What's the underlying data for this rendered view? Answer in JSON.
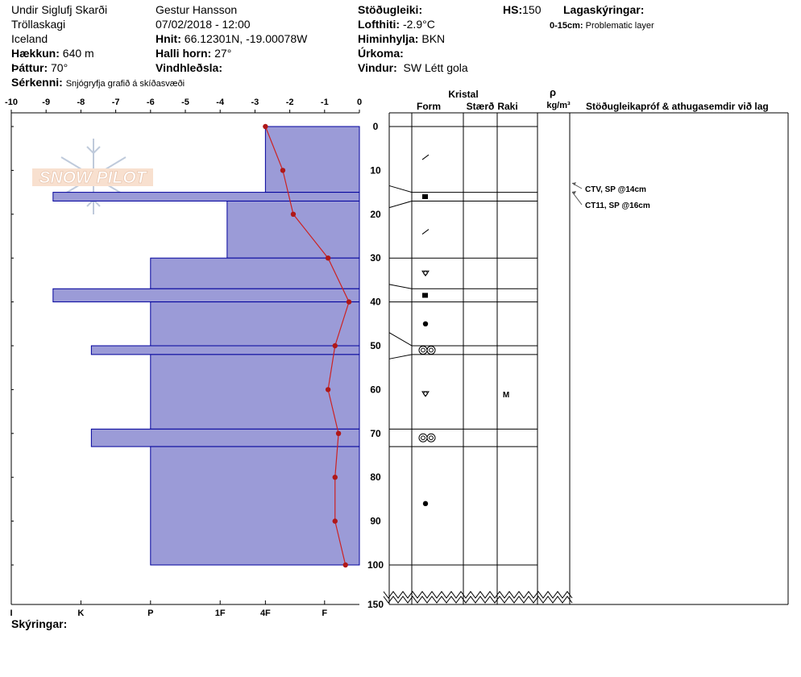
{
  "header": {
    "location": "Undir Siglufj Skarði",
    "region": "Tröllaskagi",
    "country": "Iceland",
    "elevation_label": "Hækkun:",
    "elevation_value": "640 m",
    "aspect_label": "Þáttur:",
    "aspect_value": "70°",
    "features_label": "Sérkenni:",
    "features_value": "Snjógryfja grafið á skíðasvæði",
    "observer": "Gestur Hansson",
    "datetime": "07/02/2018 - 12:00",
    "coords_label": "Hnit:",
    "coords_value": "66.12301N, -19.00078W",
    "slope_label": "Halli horn:",
    "slope_value": "27°",
    "wind_load_label": "Vindhleðsla:",
    "stability_label": "Stöðugleiki:",
    "air_temp_label": "Lofthiti:",
    "air_temp_value": "-2.9°C",
    "sky_label": "Himinhylja:",
    "sky_value": "BKN",
    "precip_label": "Úrkoma:",
    "wind_label": "Vindur:",
    "wind_value": "SW Létt gola",
    "hs_label": "HS:",
    "hs_value": "150",
    "layer_notes_label": "Lagaskýringar:",
    "layer_note_range": "0-15cm:",
    "layer_note_text": "Problematic layer"
  },
  "footer": {
    "notes_label": "Skýringar:"
  },
  "watermark": {
    "text": "SNOW PILOT"
  },
  "colors": {
    "hardness_fill": "#9b9bd7",
    "hardness_stroke": "#00009c",
    "temp_line": "#cc2222",
    "temp_point": "#b01818"
  },
  "columns": {
    "kristal": "Kristal",
    "form": "Form",
    "size": "Stærð",
    "moisture": "Raki",
    "rho": "ρ",
    "density_unit": "kg/m³",
    "tests": "Stöðugleikapróf & athugasemdir við lag"
  },
  "tests": [
    {
      "depth": 14,
      "text": "CTV, SP @14cm"
    },
    {
      "depth": 16,
      "text": "CT11, SP @16cm"
    }
  ],
  "moisture_labels": [
    {
      "depth": 61,
      "text": "M"
    }
  ],
  "layer_boundaries": [
    0,
    15,
    17,
    30,
    37,
    40,
    50,
    52,
    69,
    73,
    100
  ],
  "crystals": [
    {
      "depth": 7,
      "icon": "decomposing-icon"
    },
    {
      "depth": 16,
      "icon": "square-icon"
    },
    {
      "depth": 24,
      "icon": "decomposing-icon"
    },
    {
      "depth": 33.5,
      "icon": "rounded-facet-icon"
    },
    {
      "depth": 38.5,
      "icon": "square-icon"
    },
    {
      "depth": 45,
      "icon": "dot-icon"
    },
    {
      "depth": 51,
      "icon": "melt-cluster-icon"
    },
    {
      "depth": 61,
      "icon": "rounded-facet-icon"
    },
    {
      "depth": 71,
      "icon": "melt-cluster-icon"
    },
    {
      "depth": 86,
      "icon": "dot-icon"
    }
  ],
  "chart_data": {
    "type": "bar",
    "x_ticks": [
      -10,
      -9,
      -8,
      -7,
      -6,
      -5,
      -4,
      -3,
      -2,
      -1,
      0
    ],
    "x_tick_labels": [
      "-10",
      "-9",
      "-8",
      "-7",
      "-6",
      "-5",
      "-4",
      "-3",
      "-2",
      "-1",
      "0"
    ],
    "xlim": [
      -10,
      0
    ],
    "depth_ticks": [
      0,
      10,
      20,
      30,
      40,
      50,
      60,
      70,
      80,
      90,
      100,
      150
    ],
    "depth_range": [
      0,
      150
    ],
    "hardness_scale": [
      {
        "label": "I",
        "hardness": 10
      },
      {
        "label": "K",
        "hardness": 8
      },
      {
        "label": "P",
        "hardness": 6
      },
      {
        "label": "1F",
        "hardness": 4
      },
      {
        "label": "4F",
        "hardness": 2.7
      },
      {
        "label": "F",
        "hardness": 1
      }
    ],
    "hardness_layers": [
      {
        "top": 0,
        "bottom": 15,
        "hardness": 2.7
      },
      {
        "top": 15,
        "bottom": 17,
        "hardness": 8.8
      },
      {
        "top": 17,
        "bottom": 30,
        "hardness": 3.8
      },
      {
        "top": 30,
        "bottom": 37,
        "hardness": 6
      },
      {
        "top": 37,
        "bottom": 40,
        "hardness": 8.8
      },
      {
        "top": 40,
        "bottom": 50,
        "hardness": 6
      },
      {
        "top": 50,
        "bottom": 52,
        "hardness": 7.7
      },
      {
        "top": 52,
        "bottom": 69,
        "hardness": 6
      },
      {
        "top": 69,
        "bottom": 73,
        "hardness": 7.7
      },
      {
        "top": 73,
        "bottom": 100,
        "hardness": 6
      }
    ],
    "temperature_profile": [
      {
        "depth": 0,
        "temp": -2.7
      },
      {
        "depth": 10,
        "temp": -2.2
      },
      {
        "depth": 20,
        "temp": -1.9
      },
      {
        "depth": 30,
        "temp": -0.9
      },
      {
        "depth": 40,
        "temp": -0.3
      },
      {
        "depth": 50,
        "temp": -0.7
      },
      {
        "depth": 60,
        "temp": -0.9
      },
      {
        "depth": 70,
        "temp": -0.6
      },
      {
        "depth": 80,
        "temp": -0.7
      },
      {
        "depth": 90,
        "temp": -0.7
      },
      {
        "depth": 100,
        "temp": -0.4
      }
    ]
  }
}
